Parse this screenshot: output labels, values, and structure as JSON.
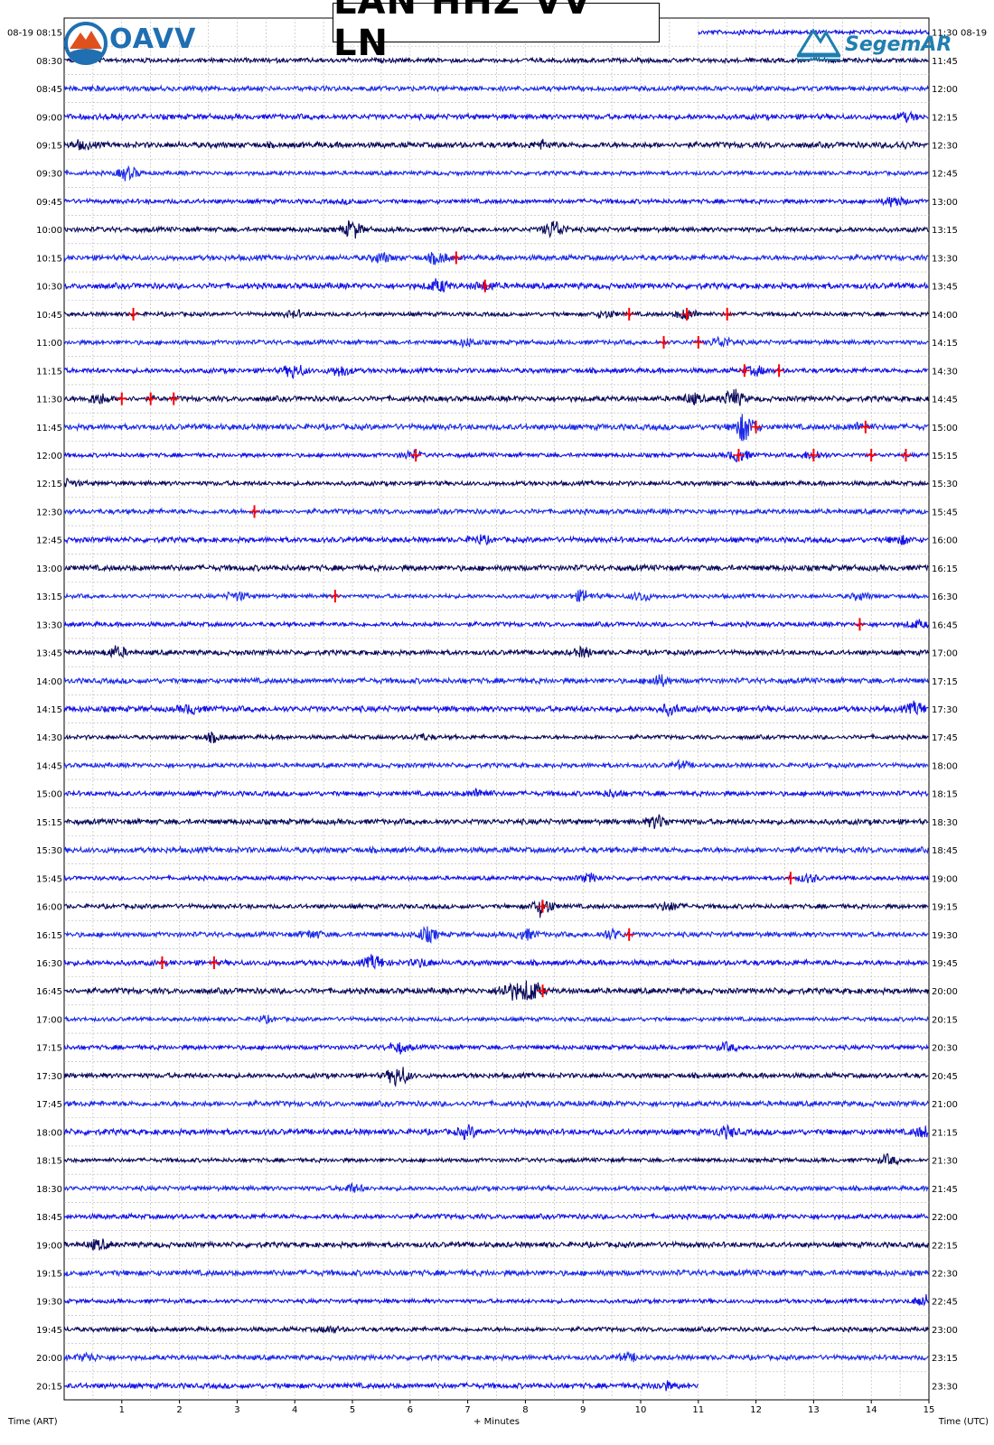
{
  "title": "LAN HHZ VV LN",
  "logos": {
    "left": "OAVV",
    "right": "SegemAR"
  },
  "colors": {
    "trace_dark": "#0a0a5c",
    "trace_blue": "#1414e6",
    "trace_light": "#1c2ce6",
    "event_marker": "#ff0000",
    "grid": "#b4b4b4"
  },
  "chart_data": {
    "type": "line",
    "subtype": "helicorder",
    "title": "LAN HHZ VV LN",
    "xlabel": "+ Minutes",
    "left_axis_label": "Time (ART)",
    "right_axis_label": "Time (UTC)",
    "xlim": [
      0,
      15
    ],
    "x_ticks": [
      "1",
      "2",
      "3",
      "4",
      "5",
      "6",
      "7",
      "8",
      "9",
      "10",
      "11",
      "12",
      "13",
      "14",
      "15"
    ],
    "left_labels": [
      "08-19 08:15",
      "08:30",
      "08:45",
      "09:00",
      "09:15",
      "09:30",
      "09:45",
      "10:00",
      "10:15",
      "10:30",
      "10:45",
      "11:00",
      "11:15",
      "11:30",
      "11:45",
      "12:00",
      "12:15",
      "12:30",
      "12:45",
      "13:00",
      "13:15",
      "13:30",
      "13:45",
      "14:00",
      "14:15",
      "14:30",
      "14:45",
      "15:00",
      "15:15",
      "15:30",
      "15:45",
      "16:00",
      "16:15",
      "16:30",
      "16:45",
      "17:00",
      "17:15",
      "17:30",
      "17:45",
      "18:00",
      "18:15",
      "18:30",
      "18:45",
      "19:00",
      "19:15",
      "19:30",
      "19:45",
      "20:00",
      "20:15"
    ],
    "right_labels": [
      "11:30 08-19",
      "11:45",
      "12:00",
      "12:15",
      "12:30",
      "12:45",
      "13:00",
      "13:15",
      "13:30",
      "13:45",
      "14:00",
      "14:15",
      "14:30",
      "14:45",
      "15:00",
      "15:15",
      "15:30",
      "15:45",
      "16:00",
      "16:15",
      "16:30",
      "16:45",
      "17:00",
      "17:15",
      "17:30",
      "17:45",
      "18:00",
      "18:15",
      "18:30",
      "18:45",
      "19:00",
      "19:15",
      "19:30",
      "19:45",
      "20:00",
      "20:15",
      "20:30",
      "20:45",
      "21:00",
      "21:15",
      "21:30",
      "21:45",
      "22:00",
      "22:15",
      "22:30",
      "22:45",
      "23:00",
      "23:15",
      "23:30"
    ],
    "first_row_start_minute": 11,
    "last_row_end_minute": 11,
    "grid": true,
    "bursts": [
      {
        "row": 0,
        "minute": 11.8,
        "amp": 1.5
      },
      {
        "row": 2,
        "minute": 0.5,
        "amp": 1.4
      },
      {
        "row": 3,
        "minute": 0.8,
        "amp": 1.6
      },
      {
        "row": 3,
        "minute": 14.6,
        "amp": 2.2
      },
      {
        "row": 4,
        "minute": 0.3,
        "amp": 2.0
      },
      {
        "row": 4,
        "minute": 8.3,
        "amp": 2.0
      },
      {
        "row": 4,
        "minute": 14.5,
        "amp": 1.8
      },
      {
        "row": 5,
        "minute": 1.1,
        "amp": 4.0
      },
      {
        "row": 6,
        "minute": 5.0,
        "amp": 1.6
      },
      {
        "row": 6,
        "minute": 14.4,
        "amp": 3.0
      },
      {
        "row": 7,
        "minute": 5.0,
        "amp": 4.0
      },
      {
        "row": 7,
        "minute": 8.5,
        "amp": 4.5
      },
      {
        "row": 8,
        "minute": 5.5,
        "amp": 2.5
      },
      {
        "row": 8,
        "minute": 6.5,
        "amp": 3.0
      },
      {
        "row": 9,
        "minute": 6.5,
        "amp": 3.0
      },
      {
        "row": 9,
        "minute": 7.3,
        "amp": 2.6
      },
      {
        "row": 10,
        "minute": 4.0,
        "amp": 2.3
      },
      {
        "row": 10,
        "minute": 9.4,
        "amp": 2.6
      },
      {
        "row": 10,
        "minute": 10.8,
        "amp": 3.5
      },
      {
        "row": 11,
        "minute": 7.0,
        "amp": 2.4
      },
      {
        "row": 11,
        "minute": 11.4,
        "amp": 3.2
      },
      {
        "row": 12,
        "minute": 4.0,
        "amp": 3.5
      },
      {
        "row": 12,
        "minute": 4.8,
        "amp": 3.0
      },
      {
        "row": 12,
        "minute": 12.0,
        "amp": 2.6
      },
      {
        "row": 13,
        "minute": 0.6,
        "amp": 2.8
      },
      {
        "row": 13,
        "minute": 11.6,
        "amp": 4.0
      },
      {
        "row": 13,
        "minute": 10.9,
        "amp": 2.6
      },
      {
        "row": 14,
        "minute": 11.8,
        "amp": 6.0
      },
      {
        "row": 14,
        "minute": 13.8,
        "amp": 2.2
      },
      {
        "row": 15,
        "minute": 6.0,
        "amp": 2.6
      },
      {
        "row": 15,
        "minute": 11.7,
        "amp": 4.0
      },
      {
        "row": 15,
        "minute": 13.0,
        "amp": 3.0
      },
      {
        "row": 16,
        "minute": 0.1,
        "amp": 2.2
      },
      {
        "row": 18,
        "minute": 7.2,
        "amp": 2.2
      },
      {
        "row": 18,
        "minute": 14.5,
        "amp": 2.4
      },
      {
        "row": 20,
        "minute": 3.0,
        "amp": 3.0
      },
      {
        "row": 20,
        "minute": 9.0,
        "amp": 3.5
      },
      {
        "row": 20,
        "minute": 10.0,
        "amp": 3.2
      },
      {
        "row": 20,
        "minute": 13.8,
        "amp": 2.4
      },
      {
        "row": 21,
        "minute": 14.8,
        "amp": 2.5
      },
      {
        "row": 22,
        "minute": 0.9,
        "amp": 3.0
      },
      {
        "row": 22,
        "minute": 9.0,
        "amp": 2.6
      },
      {
        "row": 23,
        "minute": 10.3,
        "amp": 3.0
      },
      {
        "row": 24,
        "minute": 2.2,
        "amp": 2.4
      },
      {
        "row": 24,
        "minute": 10.5,
        "amp": 2.4
      },
      {
        "row": 24,
        "minute": 14.8,
        "amp": 3.0
      },
      {
        "row": 25,
        "minute": 2.6,
        "amp": 2.8
      },
      {
        "row": 25,
        "minute": 6.2,
        "amp": 2.2
      },
      {
        "row": 26,
        "minute": 10.7,
        "amp": 2.2
      },
      {
        "row": 27,
        "minute": 7.2,
        "amp": 2.8
      },
      {
        "row": 27,
        "minute": 9.5,
        "amp": 2.0
      },
      {
        "row": 28,
        "minute": 10.3,
        "amp": 3.2
      },
      {
        "row": 30,
        "minute": 9.1,
        "amp": 2.8
      },
      {
        "row": 30,
        "minute": 12.9,
        "amp": 2.6
      },
      {
        "row": 31,
        "minute": 8.3,
        "amp": 5.0
      },
      {
        "row": 31,
        "minute": 10.5,
        "amp": 2.8
      },
      {
        "row": 32,
        "minute": 4.3,
        "amp": 2.4
      },
      {
        "row": 32,
        "minute": 6.3,
        "amp": 3.6
      },
      {
        "row": 32,
        "minute": 8.0,
        "amp": 3.0
      },
      {
        "row": 32,
        "minute": 9.5,
        "amp": 2.8
      },
      {
        "row": 33,
        "minute": 5.4,
        "amp": 3.5
      },
      {
        "row": 33,
        "minute": 6.2,
        "amp": 2.4
      },
      {
        "row": 34,
        "minute": 7.7,
        "amp": 3.5
      },
      {
        "row": 34,
        "minute": 8.1,
        "amp": 4.5
      },
      {
        "row": 35,
        "minute": 3.5,
        "amp": 2.0
      },
      {
        "row": 36,
        "minute": 5.8,
        "amp": 3.0
      },
      {
        "row": 36,
        "minute": 11.5,
        "amp": 2.4
      },
      {
        "row": 37,
        "minute": 5.8,
        "amp": 5.0
      },
      {
        "row": 39,
        "minute": 7.0,
        "amp": 2.6
      },
      {
        "row": 39,
        "minute": 11.5,
        "amp": 2.6
      },
      {
        "row": 39,
        "minute": 14.9,
        "amp": 2.6
      },
      {
        "row": 40,
        "minute": 14.3,
        "amp": 3.0
      },
      {
        "row": 41,
        "minute": 5.0,
        "amp": 2.6
      },
      {
        "row": 43,
        "minute": 0.6,
        "amp": 2.6
      },
      {
        "row": 45,
        "minute": 14.9,
        "amp": 3.5
      },
      {
        "row": 46,
        "minute": 4.6,
        "amp": 2.2
      },
      {
        "row": 47,
        "minute": 0.4,
        "amp": 2.4
      },
      {
        "row": 47,
        "minute": 9.8,
        "amp": 2.2
      },
      {
        "row": 48,
        "minute": 10.4,
        "amp": 2.2
      }
    ],
    "event_markers": [
      {
        "row": 8,
        "minute": 6.8
      },
      {
        "row": 9,
        "minute": 7.3
      },
      {
        "row": 10,
        "minute": 1.2
      },
      {
        "row": 10,
        "minute": 9.8
      },
      {
        "row": 10,
        "minute": 10.8
      },
      {
        "row": 10,
        "minute": 11.5
      },
      {
        "row": 11,
        "minute": 10.4
      },
      {
        "row": 11,
        "minute": 11.0
      },
      {
        "row": 12,
        "minute": 11.8
      },
      {
        "row": 12,
        "minute": 12.4
      },
      {
        "row": 13,
        "minute": 1.0
      },
      {
        "row": 13,
        "minute": 1.5
      },
      {
        "row": 13,
        "minute": 1.9
      },
      {
        "row": 14,
        "minute": 12.0
      },
      {
        "row": 14,
        "minute": 13.9
      },
      {
        "row": 15,
        "minute": 6.1
      },
      {
        "row": 15,
        "minute": 11.7
      },
      {
        "row": 15,
        "minute": 13.0
      },
      {
        "row": 15,
        "minute": 14.0
      },
      {
        "row": 15,
        "minute": 14.6
      },
      {
        "row": 17,
        "minute": 3.3
      },
      {
        "row": 20,
        "minute": 4.7
      },
      {
        "row": 21,
        "minute": 13.8
      },
      {
        "row": 30,
        "minute": 12.6
      },
      {
        "row": 31,
        "minute": 8.3
      },
      {
        "row": 32,
        "minute": 9.8
      },
      {
        "row": 33,
        "minute": 1.7
      },
      {
        "row": 33,
        "minute": 2.6
      },
      {
        "row": 34,
        "minute": 8.3
      }
    ]
  }
}
